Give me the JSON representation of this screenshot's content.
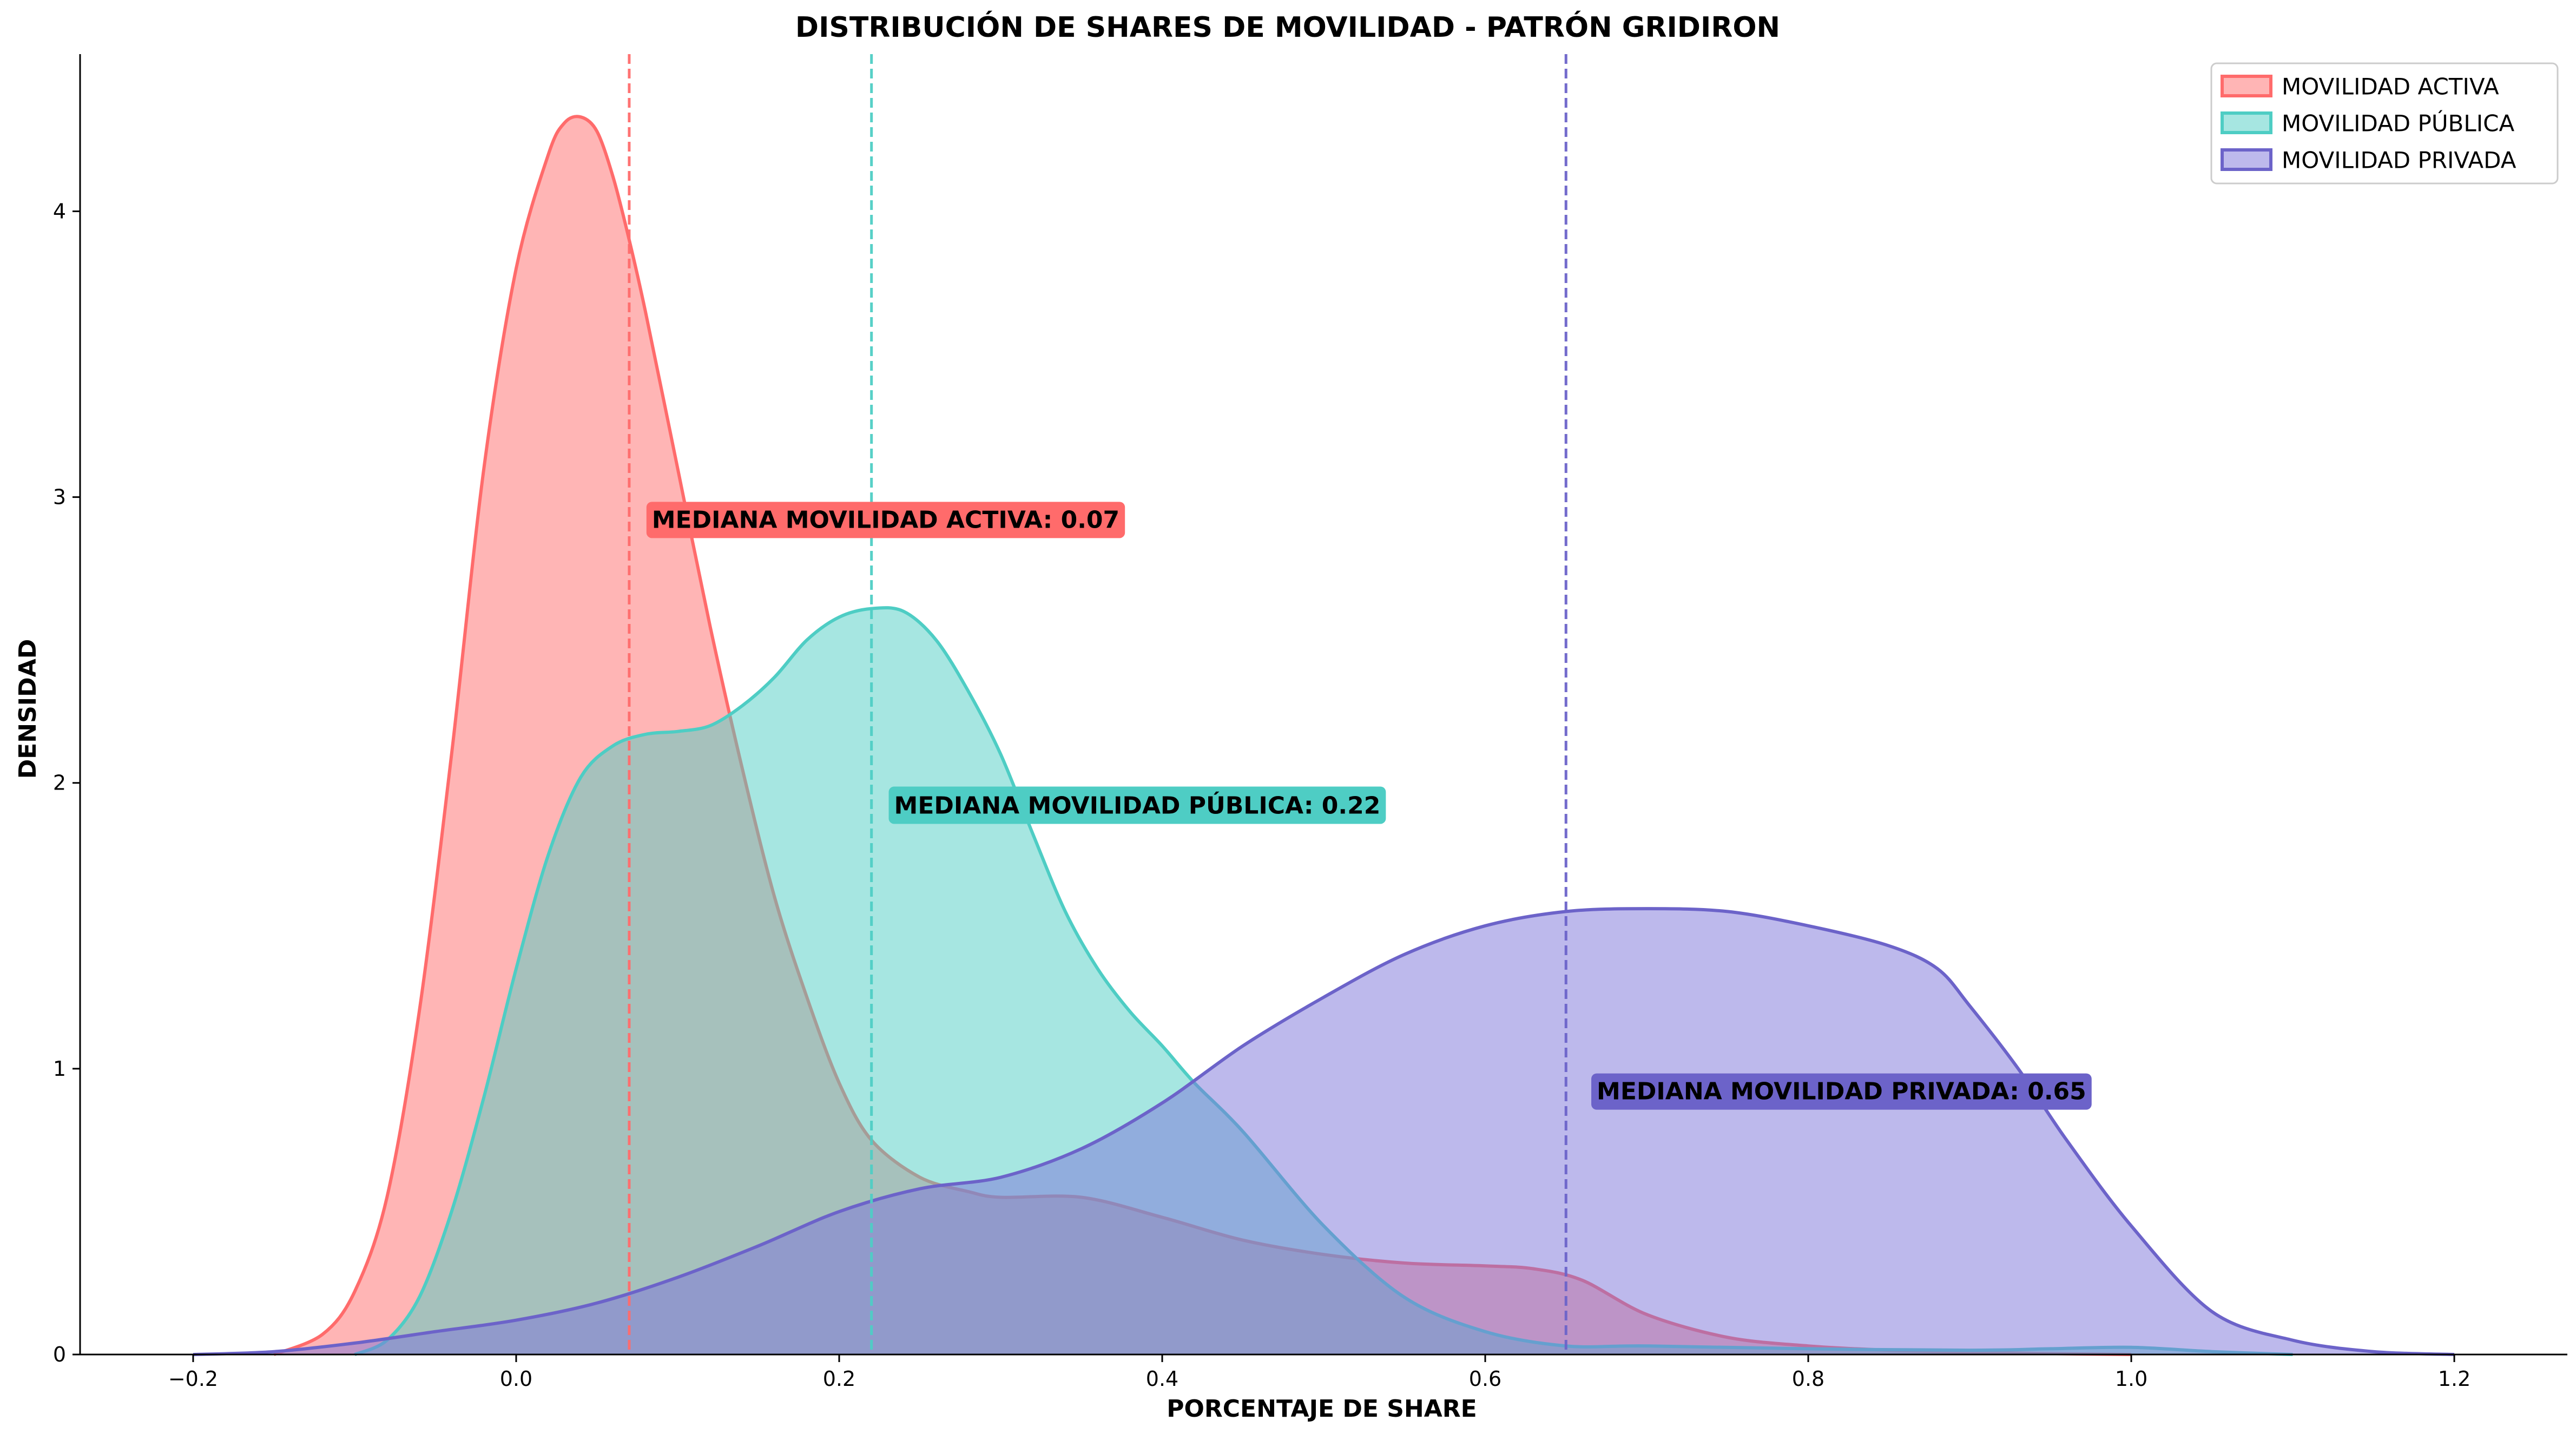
{
  "chart_data": {
    "type": "area",
    "title": "DISTRIBUCIÓN DE SHARES DE MOVILIDAD - PATRÓN GRIDIRON",
    "xlabel": "PORCENTAJE DE SHARE",
    "ylabel": "DENSIDAD",
    "xlim": [
      -0.27,
      1.27
    ],
    "ylim": [
      0,
      4.55
    ],
    "x_ticks": [
      -0.2,
      0.0,
      0.2,
      0.4,
      0.6,
      0.8,
      1.0,
      1.2
    ],
    "x_tick_labels": [
      "−0.2",
      "0.0",
      "0.2",
      "0.4",
      "0.6",
      "0.8",
      "1.0",
      "1.2"
    ],
    "y_ticks": [
      0,
      1,
      2,
      3,
      4
    ],
    "y_tick_labels": [
      "0",
      "1",
      "2",
      "3",
      "4"
    ],
    "grid": false,
    "legend_position": "top-right",
    "series": [
      {
        "name": "MOVILIDAD ACTIVA",
        "color": "#ff6b6b",
        "fill": "#ff6b6b",
        "median": 0.07,
        "annotation": "MEDIANA MOVILIDAD ACTIVA: 0.07",
        "annotation_pos": [
          0.08,
          2.92
        ],
        "x": [
          -0.15,
          -0.12,
          -0.1,
          -0.08,
          -0.06,
          -0.04,
          -0.02,
          0.0,
          0.02,
          0.03,
          0.04,
          0.05,
          0.06,
          0.07,
          0.08,
          0.1,
          0.12,
          0.14,
          0.16,
          0.18,
          0.2,
          0.22,
          0.25,
          0.28,
          0.3,
          0.35,
          0.4,
          0.45,
          0.5,
          0.55,
          0.6,
          0.63,
          0.66,
          0.7,
          0.75,
          0.8,
          0.85,
          0.9,
          0.95,
          1.0
        ],
        "y": [
          0.0,
          0.07,
          0.22,
          0.55,
          1.2,
          2.1,
          3.1,
          3.8,
          4.2,
          4.31,
          4.33,
          4.28,
          4.12,
          3.9,
          3.65,
          3.1,
          2.55,
          2.05,
          1.6,
          1.25,
          0.95,
          0.75,
          0.62,
          0.57,
          0.55,
          0.55,
          0.48,
          0.4,
          0.35,
          0.32,
          0.31,
          0.3,
          0.26,
          0.14,
          0.06,
          0.03,
          0.015,
          0.008,
          0.003,
          0.0
        ]
      },
      {
        "name": "MOVILIDAD PÚBLICA",
        "color": "#4ecdc4",
        "fill": "#4ecdc4",
        "median": 0.22,
        "annotation": "MEDIANA MOVILIDAD PÚBLICA: 0.22",
        "annotation_pos": [
          0.23,
          1.92
        ],
        "x": [
          -0.1,
          -0.08,
          -0.06,
          -0.04,
          -0.02,
          0.0,
          0.02,
          0.04,
          0.06,
          0.08,
          0.1,
          0.12,
          0.14,
          0.16,
          0.18,
          0.2,
          0.22,
          0.24,
          0.26,
          0.28,
          0.3,
          0.32,
          0.34,
          0.36,
          0.38,
          0.4,
          0.42,
          0.45,
          0.5,
          0.55,
          0.6,
          0.65,
          0.7,
          0.8,
          0.9,
          0.95,
          1.0,
          1.05,
          1.1
        ],
        "y": [
          0.0,
          0.05,
          0.2,
          0.5,
          0.9,
          1.35,
          1.75,
          2.02,
          2.13,
          2.17,
          2.18,
          2.2,
          2.27,
          2.37,
          2.5,
          2.58,
          2.61,
          2.6,
          2.5,
          2.32,
          2.1,
          1.82,
          1.55,
          1.35,
          1.2,
          1.08,
          0.95,
          0.78,
          0.45,
          0.2,
          0.08,
          0.03,
          0.03,
          0.02,
          0.015,
          0.02,
          0.025,
          0.01,
          0.0
        ]
      },
      {
        "name": "MOVILIDAD PRIVADA",
        "color": "#6c63c9",
        "fill": "#7b73d9",
        "median": 0.65,
        "annotation": "MEDIANA MOVILIDAD PRIVADA: 0.65",
        "annotation_pos": [
          0.665,
          0.92
        ],
        "x": [
          -0.2,
          -0.15,
          -0.1,
          -0.05,
          0.0,
          0.05,
          0.1,
          0.15,
          0.2,
          0.25,
          0.3,
          0.35,
          0.4,
          0.45,
          0.5,
          0.55,
          0.6,
          0.65,
          0.7,
          0.75,
          0.8,
          0.85,
          0.88,
          0.9,
          0.93,
          0.96,
          1.0,
          1.05,
          1.1,
          1.15,
          1.2
        ],
        "y": [
          0.0,
          0.01,
          0.04,
          0.08,
          0.12,
          0.18,
          0.27,
          0.38,
          0.5,
          0.58,
          0.62,
          0.72,
          0.88,
          1.08,
          1.25,
          1.4,
          1.5,
          1.55,
          1.56,
          1.55,
          1.5,
          1.43,
          1.35,
          1.22,
          1.0,
          0.75,
          0.45,
          0.15,
          0.05,
          0.01,
          0.0
        ]
      }
    ]
  }
}
